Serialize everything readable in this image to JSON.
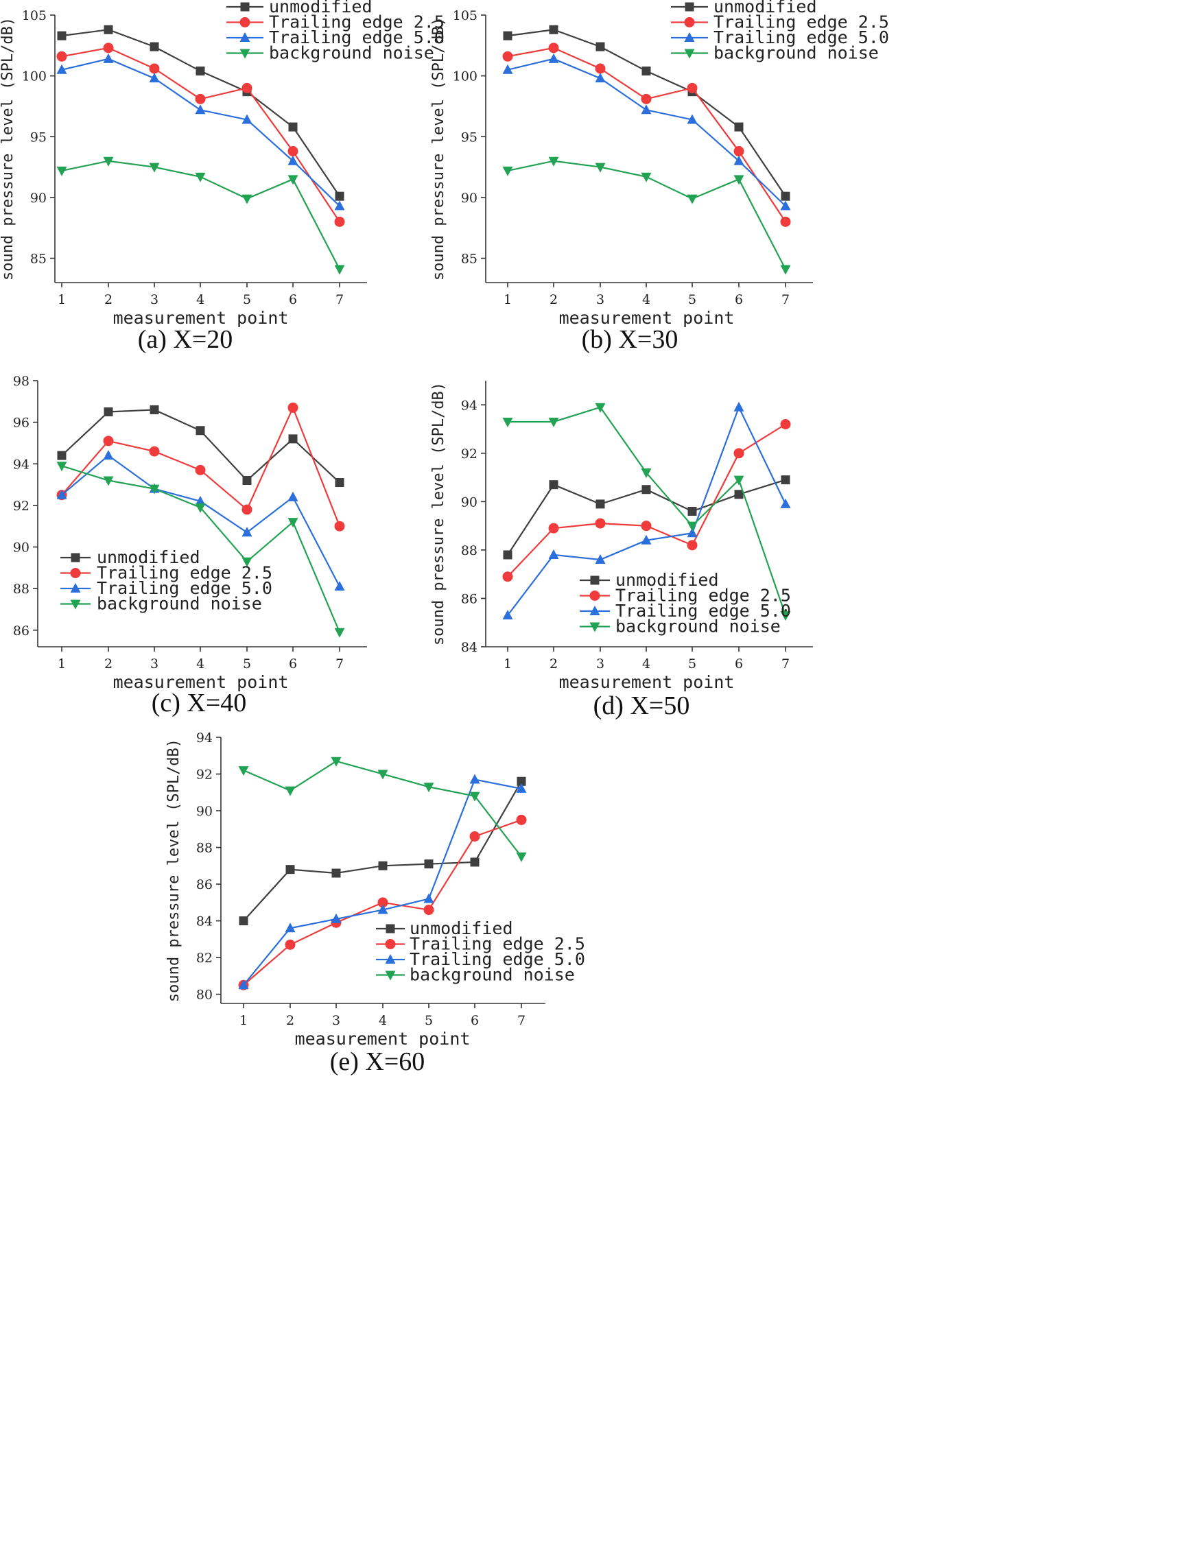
{
  "styles": {
    "unmodified": {
      "color": "#3f3f3f",
      "marker": "square"
    },
    "Trailing edge 2.5": {
      "color": "#ef3b3b",
      "marker": "circle"
    },
    "Trailing edge 5.0": {
      "color": "#2a6fdb",
      "marker": "triangle-up"
    },
    "background noise": {
      "color": "#22a353",
      "marker": "triangle-down"
    }
  },
  "chart_data": [
    {
      "type": "line",
      "caption": "(a) X=20",
      "xlabel": "measurement point",
      "ylabel": "sound pressure level (SPL/dB)",
      "x": [
        1,
        2,
        3,
        4,
        5,
        6,
        7
      ],
      "ylim": [
        83,
        105
      ],
      "yticks": [
        85,
        90,
        95,
        100,
        105
      ],
      "legend": "top-right",
      "series": [
        {
          "name": "unmodified",
          "values": [
            103.3,
            103.8,
            102.4,
            100.4,
            98.7,
            95.8,
            90.1
          ]
        },
        {
          "name": "Trailing edge 2.5",
          "values": [
            101.6,
            102.3,
            100.6,
            98.1,
            99.0,
            93.8,
            88.0
          ]
        },
        {
          "name": "Trailing edge 5.0",
          "values": [
            100.5,
            101.4,
            99.8,
            97.2,
            96.4,
            93.0,
            89.3
          ]
        },
        {
          "name": "background noise",
          "values": [
            92.2,
            93.0,
            92.5,
            91.7,
            89.9,
            91.5,
            84.1
          ]
        }
      ]
    },
    {
      "type": "line",
      "caption": "(b) X=30",
      "xlabel": "measurement point",
      "ylabel": "sound pressure level (SPL/dB)",
      "x": [
        1,
        2,
        3,
        4,
        5,
        6,
        7
      ],
      "ylim": [
        83,
        105
      ],
      "yticks": [
        85,
        90,
        95,
        100,
        105
      ],
      "legend": "top-right",
      "series": [
        {
          "name": "unmodified",
          "values": [
            103.3,
            103.8,
            102.4,
            100.4,
            98.7,
            95.8,
            90.1
          ]
        },
        {
          "name": "Trailing edge 2.5",
          "values": [
            101.6,
            102.3,
            100.6,
            98.1,
            99.0,
            93.8,
            88.0
          ]
        },
        {
          "name": "Trailing edge 5.0",
          "values": [
            100.5,
            101.4,
            99.8,
            97.2,
            96.4,
            93.0,
            89.3
          ]
        },
        {
          "name": "background noise",
          "values": [
            92.2,
            93.0,
            92.5,
            91.7,
            89.9,
            91.5,
            84.1
          ]
        }
      ]
    },
    {
      "type": "line",
      "caption": "(c) X=40",
      "xlabel": "measurement point",
      "ylabel": "sound pressure level (SPL/dB)",
      "x": [
        1,
        2,
        3,
        4,
        5,
        6,
        7
      ],
      "ylim": [
        85.2,
        98
      ],
      "yticks": [
        86,
        88,
        90,
        92,
        94,
        96,
        98
      ],
      "legend": "bottom-left",
      "series": [
        {
          "name": "unmodified",
          "values": [
            94.4,
            96.5,
            96.6,
            95.6,
            93.2,
            95.2,
            93.1
          ]
        },
        {
          "name": "Trailing edge 2.5",
          "values": [
            92.5,
            95.1,
            94.6,
            93.7,
            91.8,
            96.7,
            91.0
          ]
        },
        {
          "name": "Trailing edge 5.0",
          "values": [
            92.5,
            94.4,
            92.8,
            92.2,
            90.7,
            92.4,
            88.1
          ]
        },
        {
          "name": "background noise",
          "values": [
            93.9,
            93.2,
            92.8,
            91.9,
            89.3,
            91.2,
            85.9
          ]
        }
      ]
    },
    {
      "type": "line",
      "caption": "(d) X=50",
      "xlabel": "measurement point",
      "ylabel": "sound pressure level (SPL/dB)",
      "x": [
        1,
        2,
        3,
        4,
        5,
        6,
        7
      ],
      "ylim": [
        84,
        95
      ],
      "yticks": [
        84,
        86,
        88,
        90,
        92,
        94
      ],
      "legend": "bottom-center",
      "series": [
        {
          "name": "unmodified",
          "values": [
            87.8,
            90.7,
            89.9,
            90.5,
            89.6,
            90.3,
            90.9
          ]
        },
        {
          "name": "Trailing edge 2.5",
          "values": [
            86.9,
            88.9,
            89.1,
            89.0,
            88.2,
            92.0,
            93.2
          ]
        },
        {
          "name": "Trailing edge 5.0",
          "values": [
            85.3,
            87.8,
            87.6,
            88.4,
            88.7,
            93.9,
            89.9
          ]
        },
        {
          "name": "background noise",
          "values": [
            93.3,
            93.3,
            93.9,
            91.2,
            89.0,
            90.9,
            85.3
          ]
        }
      ]
    },
    {
      "type": "line",
      "caption": "(e) X=60",
      "xlabel": "measurement point",
      "ylabel": "sound pressure level (SPL/dB)",
      "x": [
        1,
        2,
        3,
        4,
        5,
        6,
        7
      ],
      "ylim": [
        79.5,
        94
      ],
      "yticks": [
        80,
        82,
        84,
        86,
        88,
        90,
        92,
        94
      ],
      "legend": "bottom-right",
      "series": [
        {
          "name": "unmodified",
          "values": [
            84.0,
            86.8,
            86.6,
            87.0,
            87.1,
            87.2,
            91.6
          ]
        },
        {
          "name": "Trailing edge 2.5",
          "values": [
            80.5,
            82.7,
            83.9,
            85.0,
            84.6,
            88.6,
            89.5
          ]
        },
        {
          "name": "Trailing edge 5.0",
          "values": [
            80.5,
            83.6,
            84.1,
            84.6,
            85.2,
            91.7,
            91.2
          ]
        },
        {
          "name": "background noise",
          "values": [
            92.2,
            91.1,
            92.7,
            92.0,
            91.3,
            90.8,
            87.5
          ]
        }
      ]
    }
  ]
}
